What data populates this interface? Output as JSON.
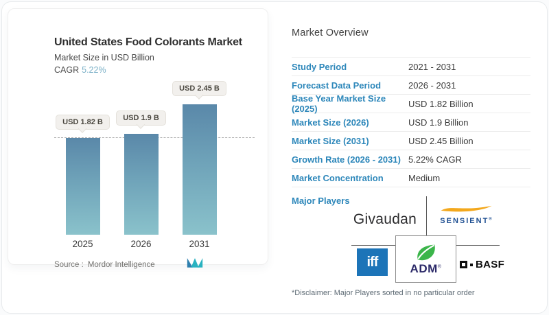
{
  "chart_card": {
    "title": "United States Food Colorants Market",
    "subtitle": "Market Size in USD Billion",
    "cagr_label": "CAGR",
    "cagr_value": "5.22%"
  },
  "chart_data": {
    "type": "bar",
    "categories": [
      "2025",
      "2026",
      "2031"
    ],
    "values": [
      1.82,
      1.9,
      2.45
    ],
    "bar_labels": [
      "USD 1.82 B",
      "USD 1.9 B",
      "USD 2.45 B"
    ],
    "title": "United States Food Colorants Market",
    "ylabel": "Market Size in USD Billion",
    "ylim": [
      0,
      2.45
    ],
    "reference_line": 1.82,
    "grid": false,
    "bar_gradient_top": "#5a88a9",
    "bar_gradient_bottom": "#8ac2cb"
  },
  "source": {
    "label": "Source :",
    "name": "Mordor Intelligence"
  },
  "overview": {
    "heading": "Market Overview",
    "rows": [
      {
        "label": "Study Period",
        "value": "2021 - 2031"
      },
      {
        "label": "Forecast Data Period",
        "value": "2026 - 2031"
      },
      {
        "label": "Base Year Market Size (2025)",
        "value": "USD 1.82 Billion"
      },
      {
        "label": "Market Size (2026)",
        "value": "USD 1.9 Billion"
      },
      {
        "label": "Market Size (2031)",
        "value": "USD 2.45 Billion"
      },
      {
        "label": "Growth Rate (2026 - 2031)",
        "value": "5.22% CAGR"
      },
      {
        "label": "Market Concentration",
        "value": "Medium"
      }
    ],
    "major_players_label": "Major Players",
    "disclaimer": "*Disclaimer: Major Players sorted in no particular order"
  },
  "players": {
    "givaudan": "Givaudan",
    "sensient": "SENSIENT",
    "sensient_reg": "®",
    "iff": "iff",
    "adm": "ADM",
    "adm_reg": "®",
    "basf": "BASF"
  },
  "colors": {
    "accent_label_blue": "#2d87ba",
    "cagr_blue": "#7cb1c8",
    "bar_top": "#5a88a9",
    "bar_bottom": "#8ac2cb",
    "sensient_navy": "#1d4e91",
    "sensient_gold": "#f3a81d",
    "iff_blue": "#1c74b8",
    "adm_green": "#3bb54a",
    "adm_navy": "#2b2968",
    "mi_teal": "#29b2c0",
    "mi_blue": "#2e7fae"
  }
}
